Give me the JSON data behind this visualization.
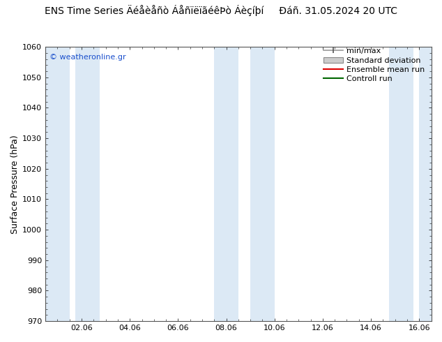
{
  "title_left": "ENS Time Series Äéåèåñò ÁåñïëïãéêÞò Áèçíþí",
  "title_right": "Ðáñ. 31.05.2024 20 UTC",
  "ylabel": "Surface Pressure (hPa)",
  "ylim": [
    970,
    1060
  ],
  "yticks": [
    970,
    980,
    990,
    1000,
    1010,
    1020,
    1030,
    1040,
    1050,
    1060
  ],
  "xlim": [
    0.5,
    16.5
  ],
  "xtick_positions": [
    2,
    4,
    6,
    8,
    10,
    12,
    14,
    16
  ],
  "xtick_labels": [
    "02.06",
    "04.06",
    "06.06",
    "08.06",
    "10.06",
    "12.06",
    "14.06",
    "16.06"
  ],
  "band_color": "#dce9f5",
  "band_ranges": [
    [
      0.5,
      1.5
    ],
    [
      1.75,
      2.75
    ],
    [
      7.5,
      8.5
    ],
    [
      9.0,
      10.0
    ],
    [
      14.75,
      15.75
    ],
    [
      16.0,
      16.5
    ]
  ],
  "watermark": "© weatheronline.gr",
  "legend_labels": [
    "min/max",
    "Standard deviation",
    "Ensemble mean run",
    "Controll run"
  ],
  "bg_color": "#ffffff",
  "plot_bg_color": "#ffffff",
  "title_fontsize": 10,
  "axis_fontsize": 9,
  "tick_fontsize": 8,
  "watermark_fontsize": 8,
  "legend_fontsize": 8
}
